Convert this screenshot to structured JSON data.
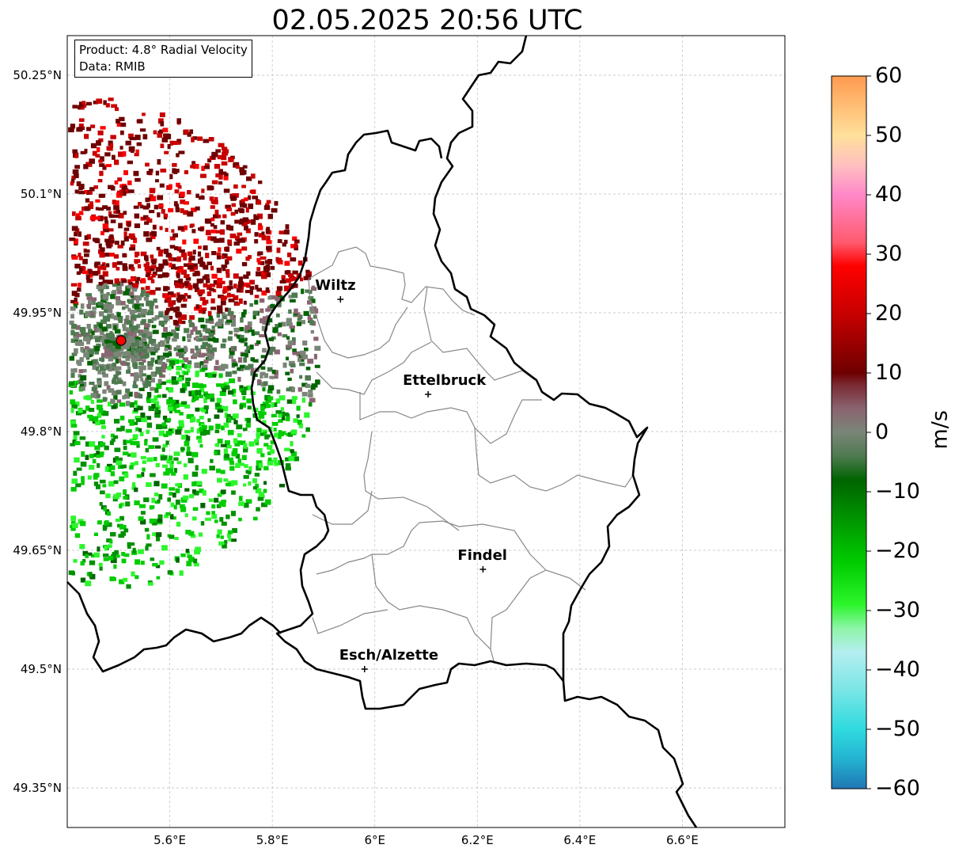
{
  "title": "02.05.2025 20:56 UTC",
  "info_box": {
    "line1": "Product: 4.8° Radial Velocity",
    "line2": "Data: RMIB"
  },
  "axes": {
    "lon_range": [
      5.4,
      6.8
    ],
    "lat_range": [
      49.3,
      50.3
    ],
    "lon_ticks": [
      {
        "v": 5.6,
        "label": "5.6°E"
      },
      {
        "v": 5.8,
        "label": "5.8°E"
      },
      {
        "v": 6.0,
        "label": "6°E"
      },
      {
        "v": 6.2,
        "label": "6.2°E"
      },
      {
        "v": 6.4,
        "label": "6.4°E"
      },
      {
        "v": 6.6,
        "label": "6.6°E"
      }
    ],
    "lat_ticks": [
      {
        "v": 50.25,
        "label": "50.25°N"
      },
      {
        "v": 50.1,
        "label": "50.1°N"
      },
      {
        "v": 49.95,
        "label": "49.95°N"
      },
      {
        "v": 49.8,
        "label": "49.8°N"
      },
      {
        "v": 49.65,
        "label": "49.65°N"
      },
      {
        "v": 49.5,
        "label": "49.5°N"
      },
      {
        "v": 49.35,
        "label": "49.35°N"
      }
    ],
    "grid": true
  },
  "colorbar": {
    "unit": "m/s",
    "range": [
      -60,
      60
    ],
    "ticks": [
      {
        "v": 60,
        "label": "60"
      },
      {
        "v": 50,
        "label": "50"
      },
      {
        "v": 40,
        "label": "40"
      },
      {
        "v": 30,
        "label": "30"
      },
      {
        "v": 20,
        "label": "20"
      },
      {
        "v": 10,
        "label": "10"
      },
      {
        "v": 0,
        "label": "0"
      },
      {
        "v": -10,
        "label": "−10"
      },
      {
        "v": -20,
        "label": "−20"
      },
      {
        "v": -30,
        "label": "−30"
      },
      {
        "v": -40,
        "label": "−40"
      },
      {
        "v": -50,
        "label": "−50"
      },
      {
        "v": -60,
        "label": "−60"
      }
    ],
    "stops": [
      {
        "v": -60,
        "color": "#1f77b4"
      },
      {
        "v": -55,
        "color": "#24b3d2"
      },
      {
        "v": -50,
        "color": "#2fdadf"
      },
      {
        "v": -43,
        "color": "#7ee6e6"
      },
      {
        "v": -37,
        "color": "#b4eef0"
      },
      {
        "v": -33,
        "color": "#8ef5a8"
      },
      {
        "v": -29,
        "color": "#2cf52c"
      },
      {
        "v": -22,
        "color": "#00cc00"
      },
      {
        "v": -14,
        "color": "#009000"
      },
      {
        "v": -8,
        "color": "#006400"
      },
      {
        "v": -4,
        "color": "#4e7a50"
      },
      {
        "v": 0,
        "color": "#7a8577"
      },
      {
        "v": 4,
        "color": "#8a6470"
      },
      {
        "v": 8,
        "color": "#7a2a32"
      },
      {
        "v": 10,
        "color": "#6e0000"
      },
      {
        "v": 20,
        "color": "#c80000"
      },
      {
        "v": 28,
        "color": "#ff0000"
      },
      {
        "v": 32,
        "color": "#ff5a6e"
      },
      {
        "v": 40,
        "color": "#ff88c8"
      },
      {
        "v": 45,
        "color": "#ffc0c0"
      },
      {
        "v": 50,
        "color": "#ffe09a"
      },
      {
        "v": 60,
        "color": "#ff9a50"
      }
    ]
  },
  "radar": {
    "lon": 5.505,
    "lat": 49.915,
    "marker_color": "#ff0000"
  },
  "cities": [
    {
      "name": "Wiltz",
      "lon": 5.933,
      "lat": 49.967
    },
    {
      "name": "Ettelbruck",
      "lon": 6.104,
      "lat": 49.847
    },
    {
      "name": "Findel",
      "lon": 6.211,
      "lat": 49.626
    },
    {
      "name": "Esch/Alzette",
      "lon": 5.98,
      "lat": 49.5
    }
  ]
}
